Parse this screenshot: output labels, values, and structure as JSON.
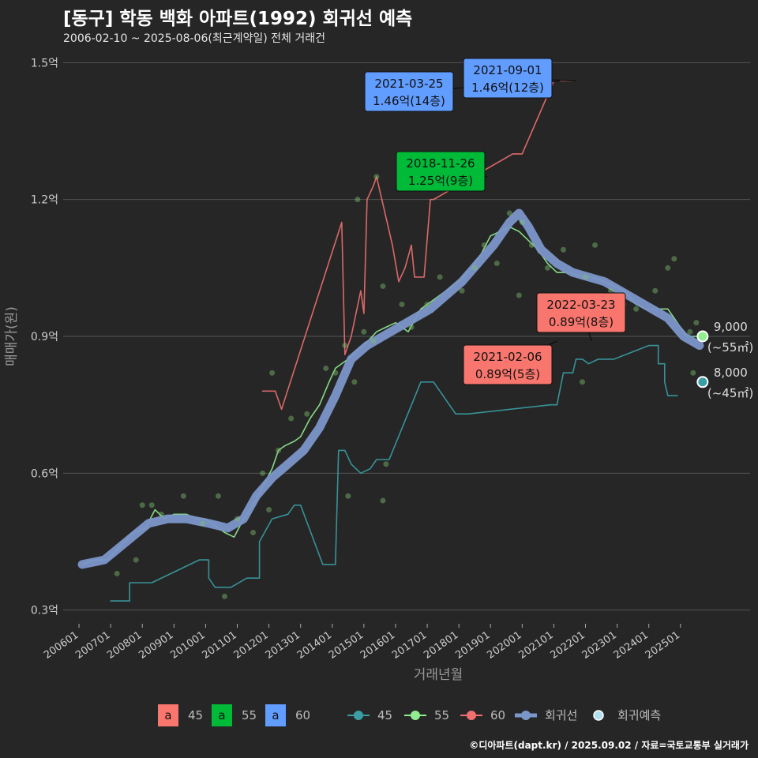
{
  "title": "[동구] 학동 백화 아파트(1992) 회귀선 예측",
  "subtitle": "2006-02-10 ~ 2025-08-06(최근계약일) 전체 거래건",
  "footer": "©디아파트(dapt.kr) / 2025.09.02 / 자료=국토교통부 실거래가",
  "colors": {
    "s45": "#3a9ea5",
    "s55": "#90ee90",
    "s60": "#f07070",
    "label45": "#f8766d",
    "label55": "#00ba38",
    "label60": "#619cff",
    "regression": "#7b96c9",
    "forecast": "#b0e0f0",
    "background": "#262626",
    "grid": "#555555"
  },
  "chart_data": {
    "type": "line",
    "xlabel": "거래년월",
    "ylabel": "매매가(원)",
    "x_ticks": [
      "200601",
      "200701",
      "200801",
      "200901",
      "201001",
      "201101",
      "201201",
      "201301",
      "201401",
      "201501",
      "201601",
      "201701",
      "201801",
      "201901",
      "202001",
      "202101",
      "202201",
      "202301",
      "202401",
      "202501"
    ],
    "y_ticks": [
      {
        "value": 0.3,
        "label": "0.3억"
      },
      {
        "value": 0.6,
        "label": "0.6억"
      },
      {
        "value": 0.9,
        "label": "0.9억"
      },
      {
        "value": 1.2,
        "label": "1.2억"
      },
      {
        "value": 1.5,
        "label": "1.5억"
      }
    ],
    "xlim": [
      2005.5,
      2027.2
    ],
    "ylim": [
      0.27,
      1.53
    ],
    "grid": true,
    "legend_position": "bottom",
    "legend_labels": [
      {
        "key": "a",
        "name": "45"
      },
      {
        "key": "a",
        "name": "55"
      },
      {
        "key": "a",
        "name": "60"
      }
    ],
    "legend_lines": [
      "45",
      "55",
      "60",
      "회귀선",
      "회귀예측"
    ],
    "series": [
      {
        "name": "45",
        "color": "#3a9ea5",
        "points": [
          [
            2007.0,
            0.32
          ],
          [
            2007.6,
            0.32
          ],
          [
            2007.6,
            0.36
          ],
          [
            2008.3,
            0.36
          ],
          [
            2009.8,
            0.41
          ],
          [
            2010.1,
            0.41
          ],
          [
            2010.1,
            0.37
          ],
          [
            2010.3,
            0.35
          ],
          [
            2010.8,
            0.35
          ],
          [
            2011.3,
            0.37
          ],
          [
            2011.7,
            0.37
          ],
          [
            2011.7,
            0.45
          ],
          [
            2012.1,
            0.5
          ],
          [
            2012.6,
            0.51
          ],
          [
            2012.8,
            0.53
          ],
          [
            2013.0,
            0.53
          ],
          [
            2013.7,
            0.4
          ],
          [
            2014.1,
            0.4
          ],
          [
            2014.2,
            0.65
          ],
          [
            2014.4,
            0.65
          ],
          [
            2014.6,
            0.62
          ],
          [
            2014.9,
            0.6
          ],
          [
            2015.2,
            0.61
          ],
          [
            2015.4,
            0.63
          ],
          [
            2015.8,
            0.63
          ],
          [
            2016.8,
            0.8
          ],
          [
            2017.2,
            0.8
          ],
          [
            2017.9,
            0.73
          ],
          [
            2018.3,
            0.73
          ],
          [
            2020.9,
            0.75
          ],
          [
            2021.1,
            0.75
          ],
          [
            2021.3,
            0.82
          ],
          [
            2021.6,
            0.82
          ],
          [
            2021.7,
            0.85
          ],
          [
            2021.9,
            0.85
          ],
          [
            2022.1,
            0.84
          ],
          [
            2022.4,
            0.85
          ],
          [
            2022.9,
            0.85
          ],
          [
            2024.0,
            0.88
          ],
          [
            2024.3,
            0.88
          ],
          [
            2024.3,
            0.84
          ],
          [
            2024.5,
            0.84
          ],
          [
            2024.5,
            0.8
          ],
          [
            2024.6,
            0.77
          ],
          [
            2024.9,
            0.77
          ]
        ]
      },
      {
        "name": "55",
        "color": "#90ee90",
        "points": [
          [
            2006.1,
            0.4
          ],
          [
            2006.5,
            0.41
          ],
          [
            2006.9,
            0.41
          ],
          [
            2007.3,
            0.44
          ],
          [
            2007.7,
            0.47
          ],
          [
            2008.1,
            0.48
          ],
          [
            2008.4,
            0.52
          ],
          [
            2008.7,
            0.5
          ],
          [
            2009.0,
            0.51
          ],
          [
            2009.4,
            0.51
          ],
          [
            2009.7,
            0.5
          ],
          [
            2010.0,
            0.5
          ],
          [
            2010.2,
            0.49
          ],
          [
            2010.6,
            0.47
          ],
          [
            2010.9,
            0.46
          ],
          [
            2011.2,
            0.5
          ],
          [
            2011.5,
            0.53
          ],
          [
            2011.8,
            0.57
          ],
          [
            2012.1,
            0.61
          ],
          [
            2012.3,
            0.65
          ],
          [
            2012.5,
            0.66
          ],
          [
            2012.8,
            0.67
          ],
          [
            2013.0,
            0.68
          ],
          [
            2013.3,
            0.72
          ],
          [
            2013.6,
            0.75
          ],
          [
            2013.9,
            0.8
          ],
          [
            2014.1,
            0.83
          ],
          [
            2014.5,
            0.85
          ],
          [
            2014.8,
            0.87
          ],
          [
            2015.0,
            0.88
          ],
          [
            2015.4,
            0.91
          ],
          [
            2015.7,
            0.92
          ],
          [
            2016.0,
            0.93
          ],
          [
            2016.4,
            0.91
          ],
          [
            2016.8,
            0.96
          ],
          [
            2017.2,
            0.98
          ],
          [
            2017.6,
            1.0
          ],
          [
            2018.0,
            1.02
          ],
          [
            2018.4,
            1.05
          ],
          [
            2018.7,
            1.08
          ],
          [
            2019.0,
            1.12
          ],
          [
            2019.3,
            1.13
          ],
          [
            2019.6,
            1.14
          ],
          [
            2019.9,
            1.13
          ],
          [
            2020.2,
            1.11
          ],
          [
            2020.5,
            1.09
          ],
          [
            2020.8,
            1.06
          ],
          [
            2021.1,
            1.04
          ],
          [
            2021.5,
            1.04
          ],
          [
            2021.9,
            1.03
          ],
          [
            2022.2,
            1.03
          ],
          [
            2022.6,
            1.02
          ],
          [
            2022.9,
            1.01
          ],
          [
            2023.2,
            1.0
          ],
          [
            2023.6,
            0.97
          ],
          [
            2023.9,
            0.96
          ],
          [
            2024.3,
            0.96
          ],
          [
            2024.6,
            0.96
          ],
          [
            2024.9,
            0.93
          ],
          [
            2025.2,
            0.9
          ],
          [
            2025.6,
            0.9
          ]
        ]
      },
      {
        "name": "60",
        "color": "#f07070",
        "points": [
          [
            2011.8,
            0.78
          ],
          [
            2012.2,
            0.78
          ],
          [
            2012.4,
            0.74
          ],
          [
            2014.3,
            1.15
          ],
          [
            2014.4,
            0.86
          ],
          [
            2014.6,
            0.9
          ],
          [
            2014.9,
            1.0
          ],
          [
            2015.0,
            0.95
          ],
          [
            2015.1,
            1.2
          ],
          [
            2015.3,
            1.23
          ],
          [
            2015.4,
            1.25
          ],
          [
            2015.9,
            1.1
          ],
          [
            2016.1,
            1.02
          ],
          [
            2016.3,
            1.05
          ],
          [
            2016.5,
            1.1
          ],
          [
            2016.6,
            1.03
          ],
          [
            2016.9,
            1.03
          ],
          [
            2017.1,
            1.2
          ],
          [
            2017.2,
            1.2
          ],
          [
            2019.7,
            1.3
          ],
          [
            2020.0,
            1.3
          ],
          [
            2021.0,
            1.46
          ],
          [
            2021.6,
            1.46
          ]
        ]
      },
      {
        "name": "회귀선",
        "color": "#7b96c9",
        "points": [
          [
            2006.1,
            0.4
          ],
          [
            2006.8,
            0.41
          ],
          [
            2007.5,
            0.45
          ],
          [
            2008.2,
            0.49
          ],
          [
            2008.8,
            0.5
          ],
          [
            2009.4,
            0.5
          ],
          [
            2010.1,
            0.49
          ],
          [
            2010.7,
            0.48
          ],
          [
            2011.2,
            0.5
          ],
          [
            2011.6,
            0.55
          ],
          [
            2012.1,
            0.59
          ],
          [
            2012.6,
            0.62
          ],
          [
            2013.1,
            0.65
          ],
          [
            2013.6,
            0.7
          ],
          [
            2014.1,
            0.77
          ],
          [
            2014.6,
            0.85
          ],
          [
            2015.1,
            0.88
          ],
          [
            2015.6,
            0.9
          ],
          [
            2016.1,
            0.92
          ],
          [
            2016.6,
            0.94
          ],
          [
            2017.1,
            0.96
          ],
          [
            2017.6,
            0.99
          ],
          [
            2018.1,
            1.02
          ],
          [
            2018.6,
            1.06
          ],
          [
            2019.1,
            1.1
          ],
          [
            2019.6,
            1.15
          ],
          [
            2019.9,
            1.17
          ],
          [
            2020.2,
            1.14
          ],
          [
            2020.6,
            1.09
          ],
          [
            2021.1,
            1.06
          ],
          [
            2021.6,
            1.04
          ],
          [
            2022.1,
            1.03
          ],
          [
            2022.6,
            1.02
          ],
          [
            2023.1,
            1.0
          ],
          [
            2023.6,
            0.98
          ],
          [
            2024.1,
            0.96
          ],
          [
            2024.6,
            0.94
          ],
          [
            2025.1,
            0.9
          ],
          [
            2025.6,
            0.88
          ]
        ]
      }
    ],
    "scatter": [
      [
        2007.2,
        0.38
      ],
      [
        2007.8,
        0.41
      ],
      [
        2008.0,
        0.53
      ],
      [
        2008.3,
        0.53
      ],
      [
        2008.6,
        0.51
      ],
      [
        2009.3,
        0.55
      ],
      [
        2009.9,
        0.49
      ],
      [
        2010.4,
        0.55
      ],
      [
        2010.6,
        0.33
      ],
      [
        2011.0,
        0.5
      ],
      [
        2011.5,
        0.47
      ],
      [
        2011.8,
        0.6
      ],
      [
        2012.0,
        0.52
      ],
      [
        2012.3,
        0.65
      ],
      [
        2012.7,
        0.72
      ],
      [
        2013.2,
        0.73
      ],
      [
        2013.8,
        0.83
      ],
      [
        2014.1,
        0.82
      ],
      [
        2014.4,
        0.88
      ],
      [
        2014.7,
        0.8
      ],
      [
        2015.0,
        0.91
      ],
      [
        2015.3,
        0.89
      ],
      [
        2015.6,
        0.54
      ],
      [
        2016.2,
        0.97
      ],
      [
        2016.5,
        0.92
      ],
      [
        2017.0,
        0.97
      ],
      [
        2017.4,
        1.03
      ],
      [
        2018.1,
        1.0
      ],
      [
        2018.5,
        1.05
      ],
      [
        2018.8,
        1.1
      ],
      [
        2019.2,
        1.06
      ],
      [
        2019.6,
        1.17
      ],
      [
        2020.0,
        1.15
      ],
      [
        2020.3,
        1.1
      ],
      [
        2020.8,
        1.05
      ],
      [
        2021.3,
        1.09
      ],
      [
        2021.6,
        0.98
      ],
      [
        2022.0,
        1.03
      ],
      [
        2022.3,
        1.1
      ],
      [
        2022.8,
        1.0
      ],
      [
        2023.2,
        0.97
      ],
      [
        2023.6,
        0.96
      ],
      [
        2024.2,
        1.0
      ],
      [
        2024.6,
        1.05
      ],
      [
        2024.8,
        1.07
      ],
      [
        2025.3,
        0.91
      ],
      [
        2025.4,
        0.82
      ],
      [
        2025.5,
        0.93
      ],
      [
        2014.5,
        0.55
      ],
      [
        2015.7,
        0.62
      ],
      [
        2012.1,
        0.82
      ],
      [
        2014.8,
        1.2
      ],
      [
        2015.4,
        1.25
      ],
      [
        2015.6,
        1.01
      ],
      [
        2020.3,
        0.87
      ],
      [
        2019.9,
        0.99
      ],
      [
        2021.9,
        0.8
      ]
    ],
    "annotations": [
      {
        "date": "2021-03-25",
        "text": "1.46억(14층)",
        "color": "#619cff",
        "x": 2021.2,
        "y": 1.46
      },
      {
        "date": "2021-09-01",
        "text": "1.46억(12층)",
        "color": "#619cff",
        "x": 2021.7,
        "y": 1.46
      },
      {
        "date": "2018-11-26",
        "text": "1.25억(9층)",
        "color": "#00ba38",
        "x": 2018.9,
        "y": 1.25
      },
      {
        "date": "2022-03-23",
        "text": "0.89억(8층)",
        "color": "#f8766d",
        "x": 2022.2,
        "y": 0.89
      },
      {
        "date": "2021-02-06",
        "text": "0.89억(5층)",
        "color": "#f8766d",
        "x": 2021.1,
        "y": 0.89
      }
    ],
    "forecasts": [
      {
        "value": "9,000",
        "area": "(~55㎡)",
        "x": 2025.7,
        "y": 0.9,
        "color": "#90ee90"
      },
      {
        "value": "8,000",
        "area": "(~45㎡)",
        "x": 2025.7,
        "y": 0.8,
        "color": "#3a9ea5"
      }
    ]
  }
}
